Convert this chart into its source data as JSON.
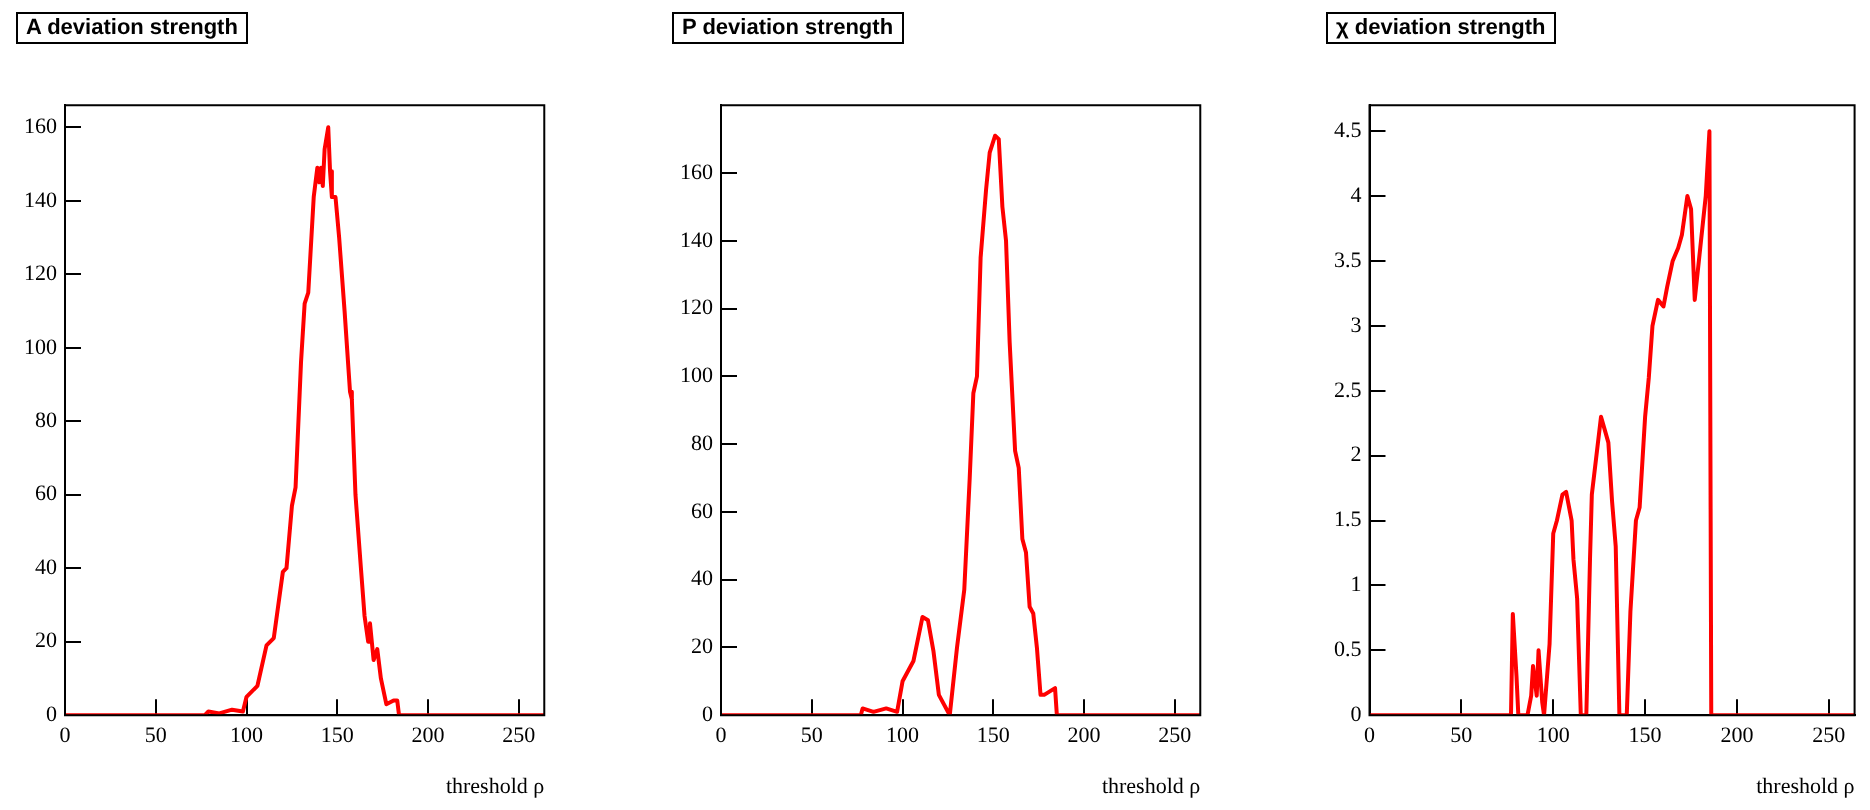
{
  "chart_data": [
    {
      "type": "line",
      "title": "A deviation strength",
      "xlabel": "threshold ρ",
      "xlim": [
        0,
        264
      ],
      "xticks": [
        0,
        50,
        100,
        150,
        200,
        250
      ],
      "ylim": [
        0,
        166
      ],
      "yticks": [
        0,
        20,
        40,
        60,
        80,
        100,
        120,
        140,
        160
      ],
      "grid": false,
      "legend": false,
      "marker": "none",
      "series": [
        {
          "color": "#ff0000",
          "x": [
            0,
            77,
            79,
            85,
            92,
            98,
            100,
            106,
            111,
            115,
            120,
            122,
            125,
            127,
            130,
            132,
            134,
            137,
            139,
            140,
            141,
            142,
            143,
            145,
            146,
            147,
            149,
            151,
            154,
            157,
            158,
            160,
            163,
            165,
            167,
            168,
            170,
            172,
            174,
            177,
            181,
            183,
            184,
            264
          ],
          "values": [
            0,
            0,
            1,
            0.5,
            1.5,
            1,
            5,
            8,
            19,
            21,
            39,
            40,
            57,
            62,
            96,
            112,
            115,
            141,
            149,
            145,
            149,
            144,
            154,
            160,
            148,
            141,
            141,
            130,
            110,
            88,
            86,
            60,
            40,
            27,
            20,
            25,
            15,
            18,
            10,
            3,
            4,
            4,
            0,
            0
          ]
        }
      ]
    },
    {
      "type": "line",
      "title": "P deviation strength",
      "xlabel": "threshold ρ",
      "xlim": [
        0,
        264
      ],
      "xticks": [
        0,
        50,
        100,
        150,
        200,
        250
      ],
      "ylim": [
        0,
        180
      ],
      "yticks": [
        0,
        20,
        40,
        60,
        80,
        100,
        120,
        140,
        160
      ],
      "grid": false,
      "legend": false,
      "marker": "none",
      "series": [
        {
          "color": "#ff0000",
          "x": [
            0,
            77,
            78,
            84,
            91,
            97,
            100,
            106,
            111,
            114,
            117,
            120,
            126,
            130,
            134,
            137,
            139,
            141,
            143,
            146,
            148,
            151,
            153,
            155,
            157,
            159,
            162,
            164,
            166,
            168,
            170,
            172,
            174,
            176,
            178,
            184,
            185,
            264
          ],
          "values": [
            0,
            0,
            2,
            1,
            2,
            1,
            10,
            16,
            29,
            28,
            19,
            6,
            0,
            20,
            37,
            70,
            95,
            100,
            135,
            155,
            166,
            171,
            170,
            150,
            140,
            110,
            78,
            73,
            52,
            48,
            32,
            30,
            20,
            6,
            6,
            8,
            0,
            0
          ]
        }
      ]
    },
    {
      "type": "line",
      "title": "χ deviation strength",
      "xlabel": "threshold ρ",
      "xlim": [
        0,
        264
      ],
      "xticks": [
        0,
        50,
        100,
        150,
        200,
        250
      ],
      "ylim": [
        0,
        4.7
      ],
      "yticks": [
        0,
        0.5,
        1,
        1.5,
        2,
        2.5,
        3,
        3.5,
        4,
        4.5
      ],
      "grid": false,
      "legend": false,
      "marker": "none",
      "series": [
        {
          "color": "#ff0000",
          "x": [
            0,
            77,
            78,
            80,
            81,
            86,
            88,
            89,
            91,
            92,
            94,
            95,
            98,
            100,
            102,
            105,
            107,
            110,
            111,
            113,
            115,
            118,
            120,
            121,
            126,
            128,
            130,
            132,
            134,
            136,
            140,
            142,
            145,
            147,
            150,
            152,
            154,
            157,
            160,
            162,
            165,
            168,
            170,
            173,
            175,
            177,
            180,
            183,
            185,
            186,
            264
          ],
          "values": [
            0,
            0,
            0.78,
            0.3,
            0,
            0,
            0.15,
            0.38,
            0.15,
            0.5,
            0.1,
            0,
            0.55,
            1.4,
            1.5,
            1.7,
            1.72,
            1.5,
            1.2,
            0.9,
            0,
            0,
            1.2,
            1.7,
            2.3,
            2.2,
            2.1,
            1.65,
            1.3,
            0,
            0,
            0.8,
            1.5,
            1.6,
            2.3,
            2.6,
            3,
            3.2,
            3.15,
            3.3,
            3.5,
            3.6,
            3.7,
            4,
            3.9,
            3.2,
            3.6,
            4,
            4.5,
            0,
            0
          ]
        }
      ]
    }
  ]
}
